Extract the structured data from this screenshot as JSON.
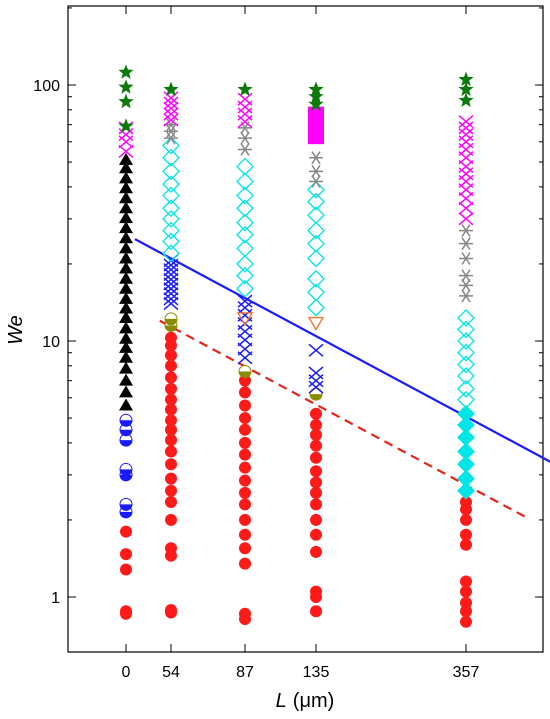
{
  "chart_data": {
    "type": "scatter",
    "xlabel_italic": "L",
    "xlabel_unit": "(μm)",
    "ylabel": "We",
    "y_scale": "log",
    "ylim": [
      0.7,
      200
    ],
    "x_categories": [
      "0",
      "54",
      "87",
      "135",
      "357"
    ],
    "yticks": [
      {
        "value": 1,
        "label": "1"
      },
      {
        "value": 10,
        "label": "10"
      },
      {
        "value": 100,
        "label": "100"
      }
    ],
    "lines": [
      {
        "style": "solid",
        "color": "#1a1aff",
        "from": [
          0.2,
          25
        ],
        "to": [
          4.95,
          2.55
        ]
      },
      {
        "style": "dashed",
        "color": "#e8231a",
        "from": [
          0.75,
          12.0
        ],
        "to": [
          4.4,
          2.05
        ]
      }
    ],
    "columns": [
      {
        "x": "0",
        "groups": [
          {
            "marker": "circle-filled",
            "color": "#ff1a1a",
            "y": [
              0.86,
              0.88,
              1.28,
              1.47,
              1.8
            ]
          },
          {
            "marker": "circle-half",
            "color": "#1a1aff",
            "y": [
              2.15,
              2.3,
              3.0,
              3.15,
              4.1,
              4.5,
              4.9
            ]
          },
          {
            "marker": "triangle-filled",
            "color": "#000000",
            "y": [
              5.6,
              6.3,
              7.0,
              7.8,
              8.6,
              9.4,
              10.2,
              11.2,
              12.3,
              13.4,
              14.6,
              16.0,
              17.5,
              19.2,
              21.0,
              23.0,
              25.2,
              27.6,
              30.2,
              33.0,
              36.1,
              39.5,
              43.2,
              47.3,
              51.0
            ]
          },
          {
            "marker": "x-cross",
            "color": "#ff00ff",
            "y": [
              55,
              60,
              64,
              68
            ]
          },
          {
            "marker": "star",
            "color": "#0b7a0b",
            "y": [
              69,
              86,
              98,
              112
            ]
          }
        ]
      },
      {
        "x": "54",
        "groups": [
          {
            "marker": "circle-filled",
            "color": "#ff1a1a",
            "y": [
              0.87,
              0.89,
              1.45,
              1.55,
              2.0,
              2.35,
              2.6,
              2.9,
              3.3,
              3.7,
              4.1,
              4.5,
              4.9,
              5.4,
              5.9,
              6.5,
              7.2,
              8.0,
              8.8,
              9.6,
              10.3
            ]
          },
          {
            "marker": "circle-half-olive",
            "color": "#8b8b00",
            "y": [
              11.5,
              12.2
            ]
          },
          {
            "marker": "x-cross",
            "color": "#1a1aff",
            "y": [
              14.0,
              14.6,
              15.3,
              16.0,
              16.7,
              17.4,
              18.2,
              19.0,
              19.8,
              20.6
            ]
          },
          {
            "marker": "diamond-open",
            "color": "#00e5e5",
            "y": [
              22,
              24.5,
              27,
              30,
              33,
              37,
              41,
              46,
              52,
              58
            ]
          },
          {
            "marker": "asterisk",
            "color": "#888888",
            "y": [
              62,
              66,
              70
            ]
          },
          {
            "marker": "x-cross",
            "color": "#ff00ff",
            "y": [
              73,
              77,
              81,
              85,
              89
            ]
          },
          {
            "marker": "star",
            "color": "#0b7a0b",
            "y": [
              96
            ]
          }
        ]
      },
      {
        "x": "87",
        "groups": [
          {
            "marker": "circle-filled",
            "color": "#ff1a1a",
            "y": [
              0.82,
              0.86,
              1.35,
              1.55,
              1.75,
              2.0,
              2.3,
              2.55,
              2.85,
              3.2,
              3.6,
              4.0,
              4.5,
              5.0,
              5.6,
              6.3,
              7.0
            ]
          },
          {
            "marker": "circle-half-olive",
            "color": "#8b8b00",
            "y": [
              7.6
            ]
          },
          {
            "marker": "x-cross",
            "color": "#1a1aff",
            "y": [
              8.6,
              9.3,
              10.1,
              10.9,
              11.7,
              12.6,
              13.5,
              14.3
            ]
          },
          {
            "marker": "triangle-down-open",
            "color": "#ee7733",
            "y": [
              12.3
            ]
          },
          {
            "marker": "diamond-open",
            "color": "#00e5e5",
            "y": [
              16,
              18,
              20,
              23,
              26,
              29,
              33,
              37,
              42,
              48
            ]
          },
          {
            "marker": "asterisk",
            "color": "#888888",
            "y": [
              56,
              62,
              68
            ]
          },
          {
            "marker": "x-cross",
            "color": "#ff00ff",
            "y": [
              72,
              77,
              82,
              88
            ]
          },
          {
            "marker": "star",
            "color": "#0b7a0b",
            "y": [
              96
            ]
          }
        ]
      },
      {
        "x": "135",
        "groups": [
          {
            "marker": "circle-filled",
            "color": "#ff1a1a",
            "y": [
              0.88,
              1.0,
              1.05,
              1.5,
              1.75,
              2.0,
              2.3,
              2.55,
              2.8,
              3.1,
              3.5,
              3.9,
              4.3,
              4.7,
              5.2
            ]
          },
          {
            "marker": "circle-half-olive",
            "color": "#8b8b00",
            "y": [
              6.2
            ]
          },
          {
            "marker": "x-cross",
            "color": "#1a1aff",
            "y": [
              6.6,
              7.0,
              7.5,
              9.2
            ]
          },
          {
            "marker": "triangle-down-open",
            "color": "#ee7733",
            "y": [
              11.8
            ]
          },
          {
            "marker": "diamond-open",
            "color": "#00e5e5",
            "y": [
              13.5,
              15.5,
              17.5,
              21,
              24,
              27,
              31,
              35,
              39
            ]
          },
          {
            "marker": "asterisk",
            "color": "#888888",
            "y": [
              42,
              46,
              52
            ]
          },
          {
            "marker": "square-filled",
            "color": "#ff00ff",
            "y": [
              62,
              66,
              70,
              74,
              78
            ]
          },
          {
            "marker": "star",
            "color": "#0b7a0b",
            "y": [
              84,
              90,
              96
            ]
          }
        ]
      },
      {
        "x": "357",
        "groups": [
          {
            "marker": "circle-filled",
            "color": "#ff1a1a",
            "y": [
              0.8,
              0.88,
              0.95,
              1.05,
              1.15,
              1.6,
              1.75,
              2.0,
              2.2,
              2.35
            ]
          },
          {
            "marker": "diamond-filled",
            "color": "#00e5e5",
            "y": [
              2.6,
              2.9,
              3.3,
              3.7,
              4.2,
              4.7,
              5.2
            ]
          },
          {
            "marker": "diamond-open",
            "color": "#00e5e5",
            "y": [
              5.9,
              6.5,
              7.3,
              8.1,
              9.0,
              10.0,
              11.1,
              12.3
            ]
          },
          {
            "marker": "asterisk",
            "color": "#888888",
            "y": [
              15,
              16.5,
              18,
              21,
              24,
              27
            ]
          },
          {
            "marker": "x-cross",
            "color": "#ff00ff",
            "y": [
              30,
              33,
              36,
              39,
              42,
              45,
              48,
              52,
              56,
              60,
              64,
              68,
              72
            ]
          },
          {
            "marker": "star",
            "color": "#0b7a0b",
            "y": [
              87,
              96,
              105
            ]
          }
        ]
      }
    ]
  }
}
